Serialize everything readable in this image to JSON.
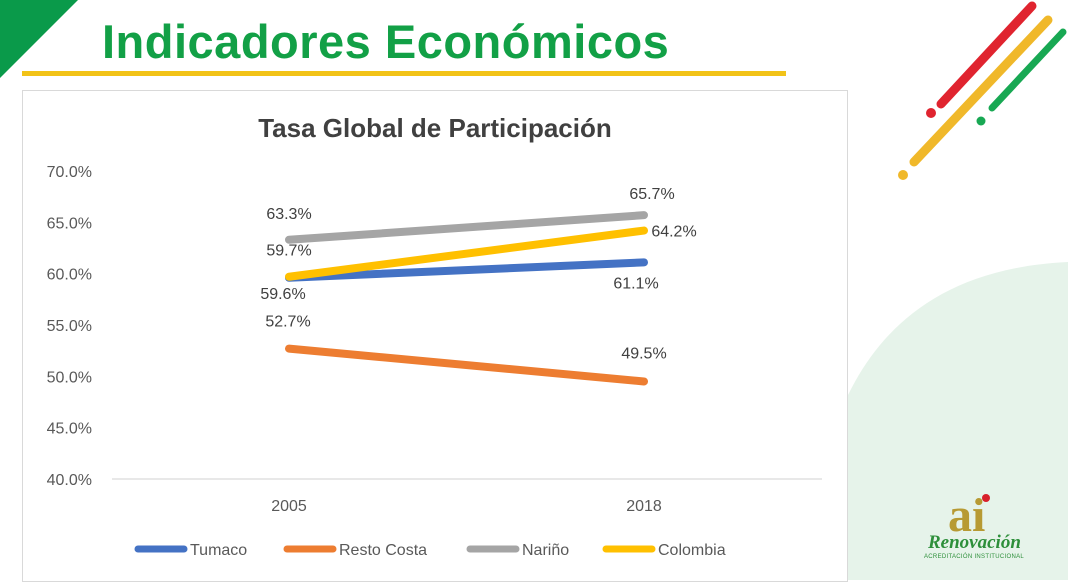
{
  "header": {
    "title": "Indicadores Económicos"
  },
  "colors": {
    "title_green": "#12a046",
    "title_underline": "#f2c318",
    "corner": "#0a9a4a",
    "stripe_red": "#e0242f",
    "stripe_yellow": "#f0b82a",
    "stripe_green": "#18a853",
    "wave": "#e6f3ea"
  },
  "chart_data": {
    "type": "line",
    "title": "Tasa Global de Participación",
    "xlabel": "",
    "ylabel": "",
    "categories": [
      "2005",
      "2018"
    ],
    "ylim": [
      40,
      70
    ],
    "yticks": [
      "70.0%",
      "65.0%",
      "60.0%",
      "55.0%",
      "50.0%",
      "45.0%",
      "40.0%"
    ],
    "grid": false,
    "legend": "bottom",
    "series": [
      {
        "name": "Tumaco",
        "values": [
          59.6,
          61.1
        ],
        "labels": [
          "59.6%",
          "61.1%"
        ],
        "color": "#4472c4"
      },
      {
        "name": "Resto Costa",
        "values": [
          52.7,
          49.5
        ],
        "labels": [
          "52.7%",
          "49.5%"
        ],
        "color": "#ed7d31"
      },
      {
        "name": "Nariño",
        "values": [
          63.3,
          65.7
        ],
        "labels": [
          "63.3%",
          "65.7%"
        ],
        "color": "#a5a5a5"
      },
      {
        "name": "Colombia",
        "values": [
          59.7,
          64.2
        ],
        "labels": [
          "59.7%",
          "64.2%"
        ],
        "color": "#ffc000"
      }
    ]
  },
  "logo": {
    "mark": "ai",
    "name": "Renovación",
    "subtitle": "ACREDITACIÓN INSTITUCIONAL"
  }
}
